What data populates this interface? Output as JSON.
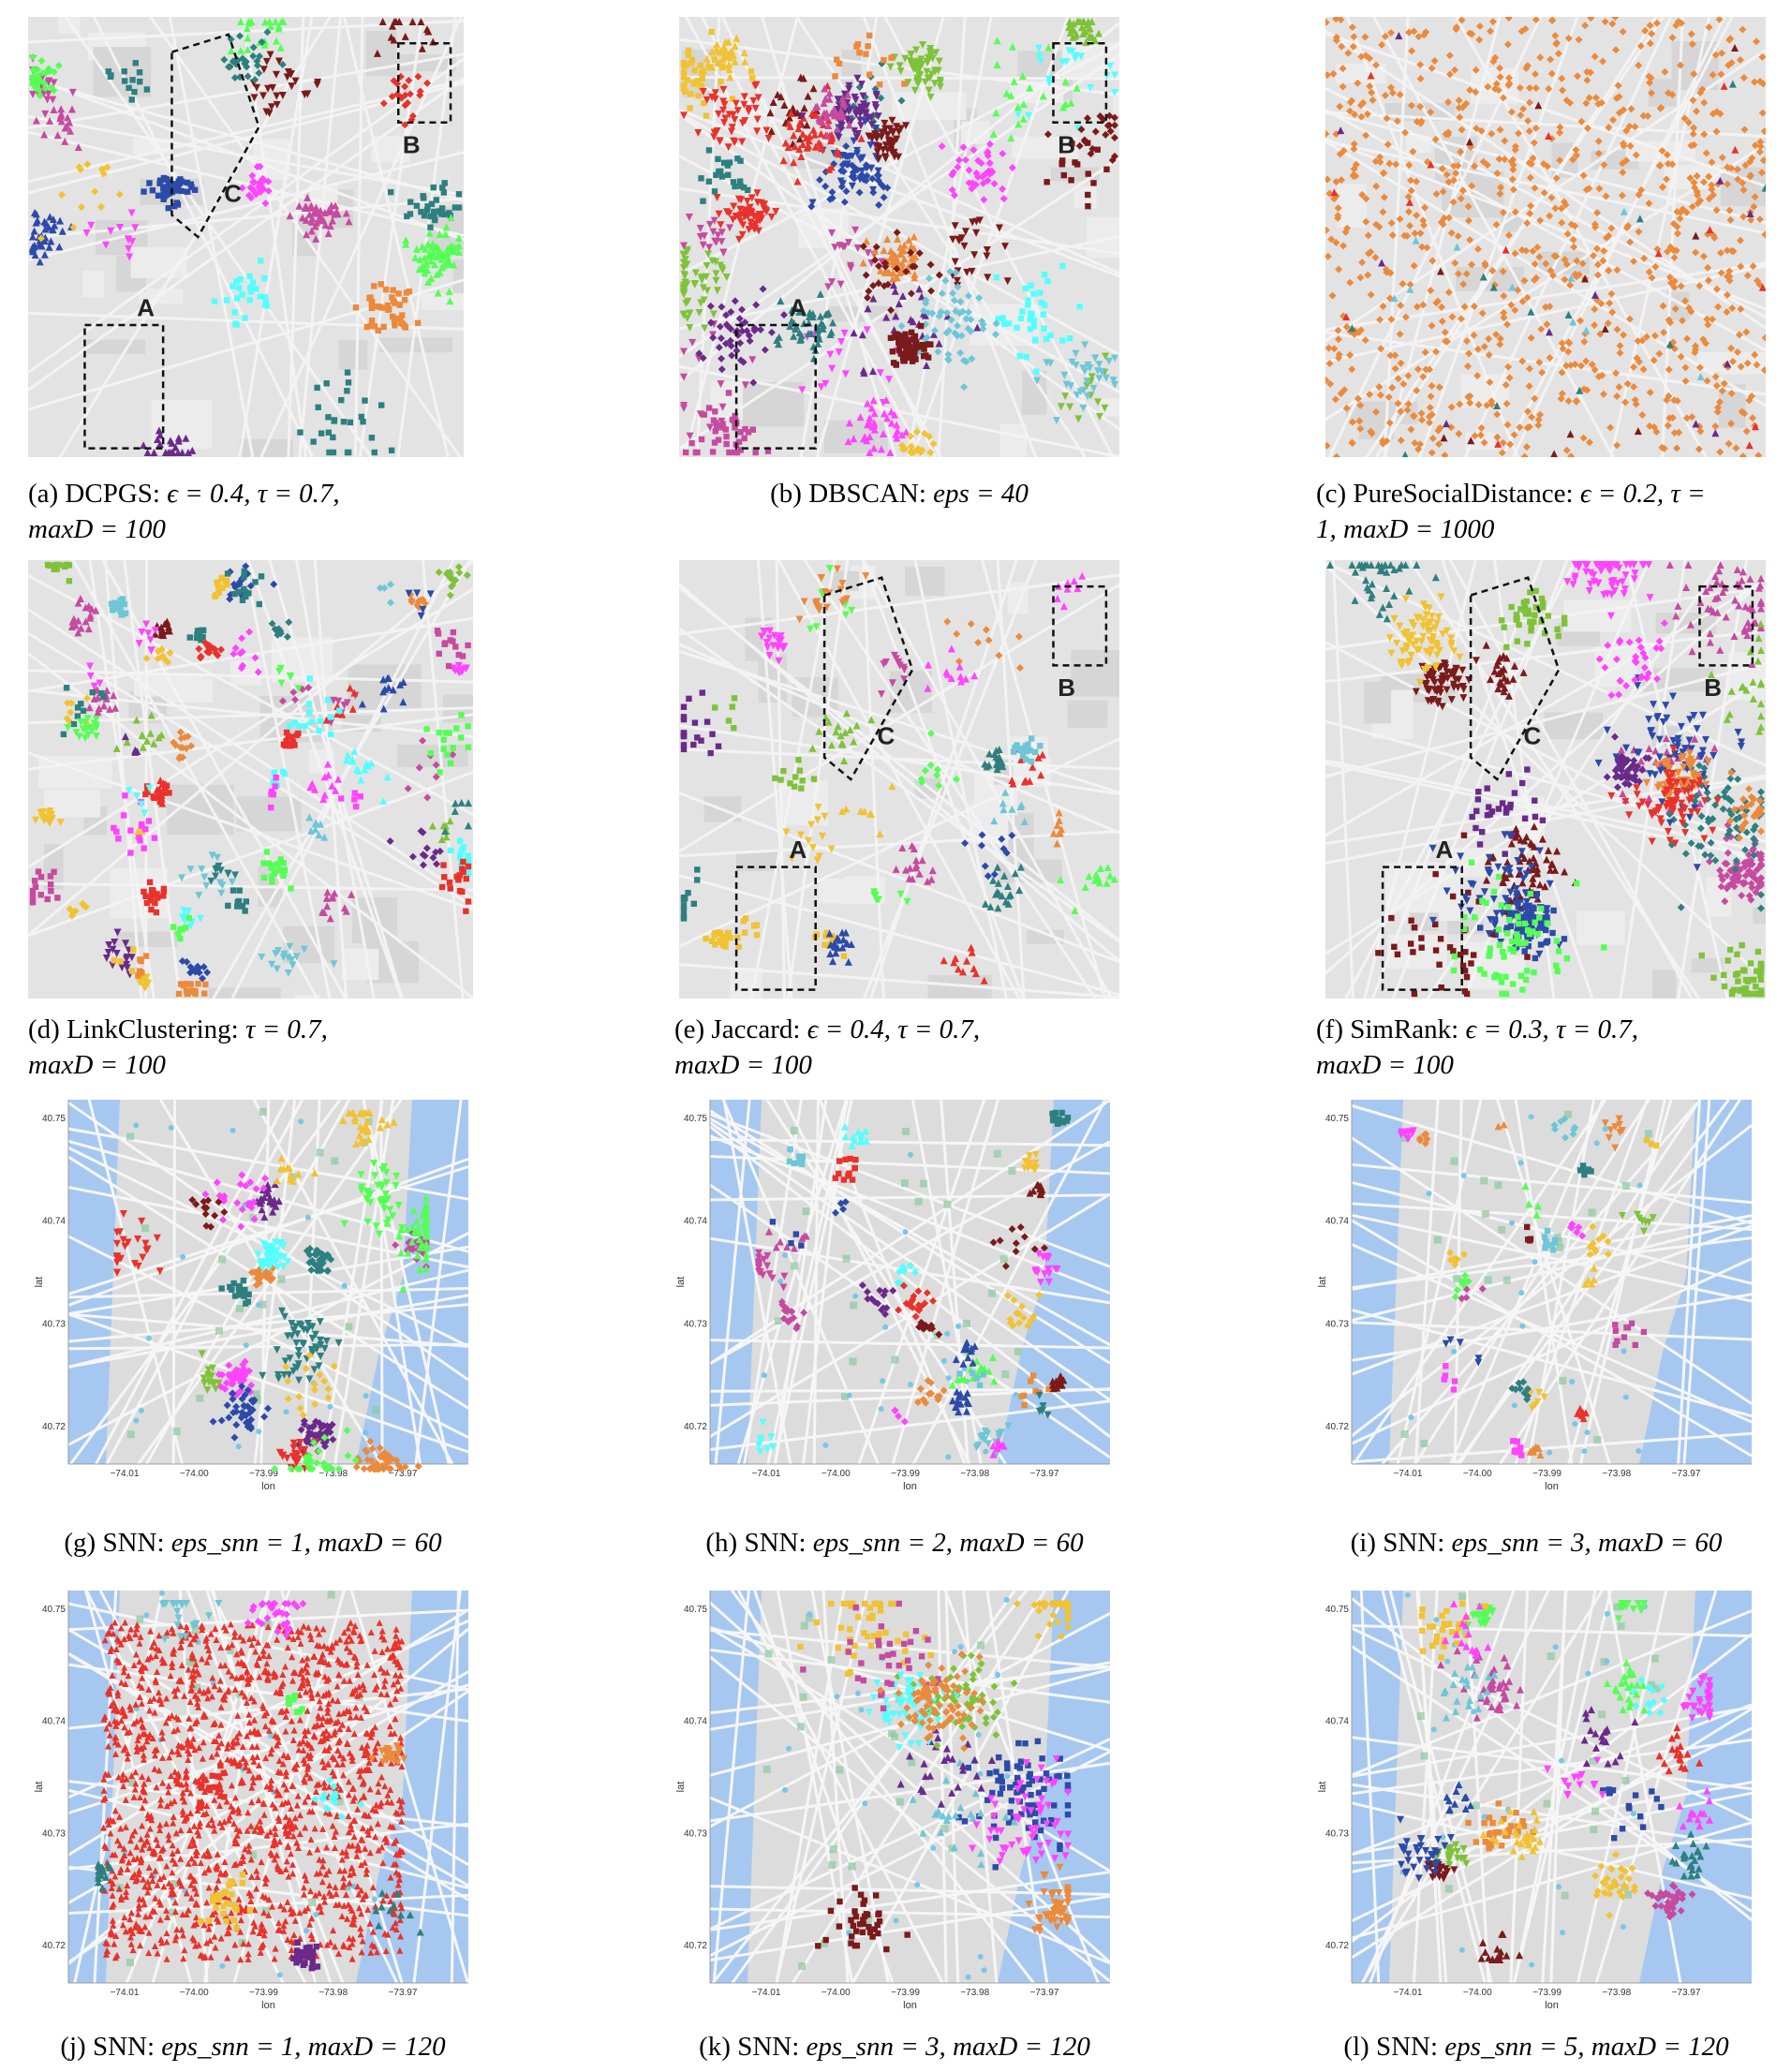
{
  "figure": {
    "panels": [
      {
        "id": "a",
        "caption_prefix": "(a) DCPGS:",
        "caption_math": "ϵ = 0.4, τ = 0.7,",
        "caption_line2": "maxD = 100",
        "style": "gray",
        "boxes": [
          "A",
          "B",
          "C"
        ]
      },
      {
        "id": "b",
        "caption_prefix": "(b) DBSCAN:",
        "caption_math": "eps = 40",
        "caption_line2": "",
        "style": "gray",
        "boxes": [
          "A",
          "B"
        ]
      },
      {
        "id": "c",
        "caption_prefix": "(c) PureSocialDistance:",
        "caption_math": "ϵ = 0.2, τ =",
        "caption_line2": "1, maxD = 1000",
        "style": "gray",
        "boxes": []
      },
      {
        "id": "d",
        "caption_prefix": "(d) LinkClustering:",
        "caption_math": "τ = 0.7,",
        "caption_line2": "maxD = 100",
        "style": "gray",
        "boxes": []
      },
      {
        "id": "e",
        "caption_prefix": "(e) Jaccard:",
        "caption_math": "ϵ = 0.4, τ = 0.7,",
        "caption_line2": "maxD = 100",
        "style": "gray",
        "boxes": [
          "A",
          "B",
          "C"
        ]
      },
      {
        "id": "f",
        "caption_prefix": "(f) SimRank:",
        "caption_math": "ϵ = 0.3, τ = 0.7,",
        "caption_line2": "maxD = 100",
        "style": "gray",
        "boxes": [
          "A",
          "B",
          "C"
        ]
      },
      {
        "id": "g",
        "caption_prefix": "(g) SNN:",
        "caption_math": "eps_snn = 1, maxD = 60",
        "caption_line2": "",
        "style": "color",
        "boxes": []
      },
      {
        "id": "h",
        "caption_prefix": "(h) SNN:",
        "caption_math": "eps_snn = 2, maxD = 60",
        "caption_line2": "",
        "style": "color",
        "boxes": []
      },
      {
        "id": "i",
        "caption_prefix": "(i) SNN:",
        "caption_math": "eps_snn = 3, maxD = 60",
        "caption_line2": "",
        "style": "color",
        "boxes": []
      },
      {
        "id": "j",
        "caption_prefix": "(j) SNN:",
        "caption_math": "eps_snn = 1, maxD = 120",
        "caption_line2": "",
        "style": "color",
        "boxes": []
      },
      {
        "id": "k",
        "caption_prefix": "(k) SNN:",
        "caption_math": "eps_snn = 3, maxD = 120",
        "caption_line2": "",
        "style": "color",
        "boxes": []
      },
      {
        "id": "l",
        "caption_prefix": "(l) SNN:",
        "caption_math": "eps_snn = 5, maxD = 120",
        "caption_line2": "",
        "style": "color",
        "boxes": []
      }
    ],
    "axis": {
      "ylabel": "lat",
      "xlabel": "lon",
      "yticks": [
        "40.75",
        "40.74",
        "40.73",
        "40.72"
      ],
      "xticks": [
        "−74.01",
        "−74.00",
        "−73.99",
        "−73.98",
        "−73.97"
      ]
    },
    "palette": {
      "map_gray": "#dcdcdc",
      "map_blue": "#a6c8f0",
      "map_street": "#f4f4f4",
      "clusters": [
        "#7a1a1a",
        "#e8322b",
        "#6ec6d6",
        "#2e7f7f",
        "#6a2a8a",
        "#eb8a3c",
        "#7fc23a",
        "#c64aa0",
        "#2c4aa8",
        "#f1c232",
        "#ff44ff",
        "#55ffff",
        "#55ff55"
      ]
    }
  }
}
